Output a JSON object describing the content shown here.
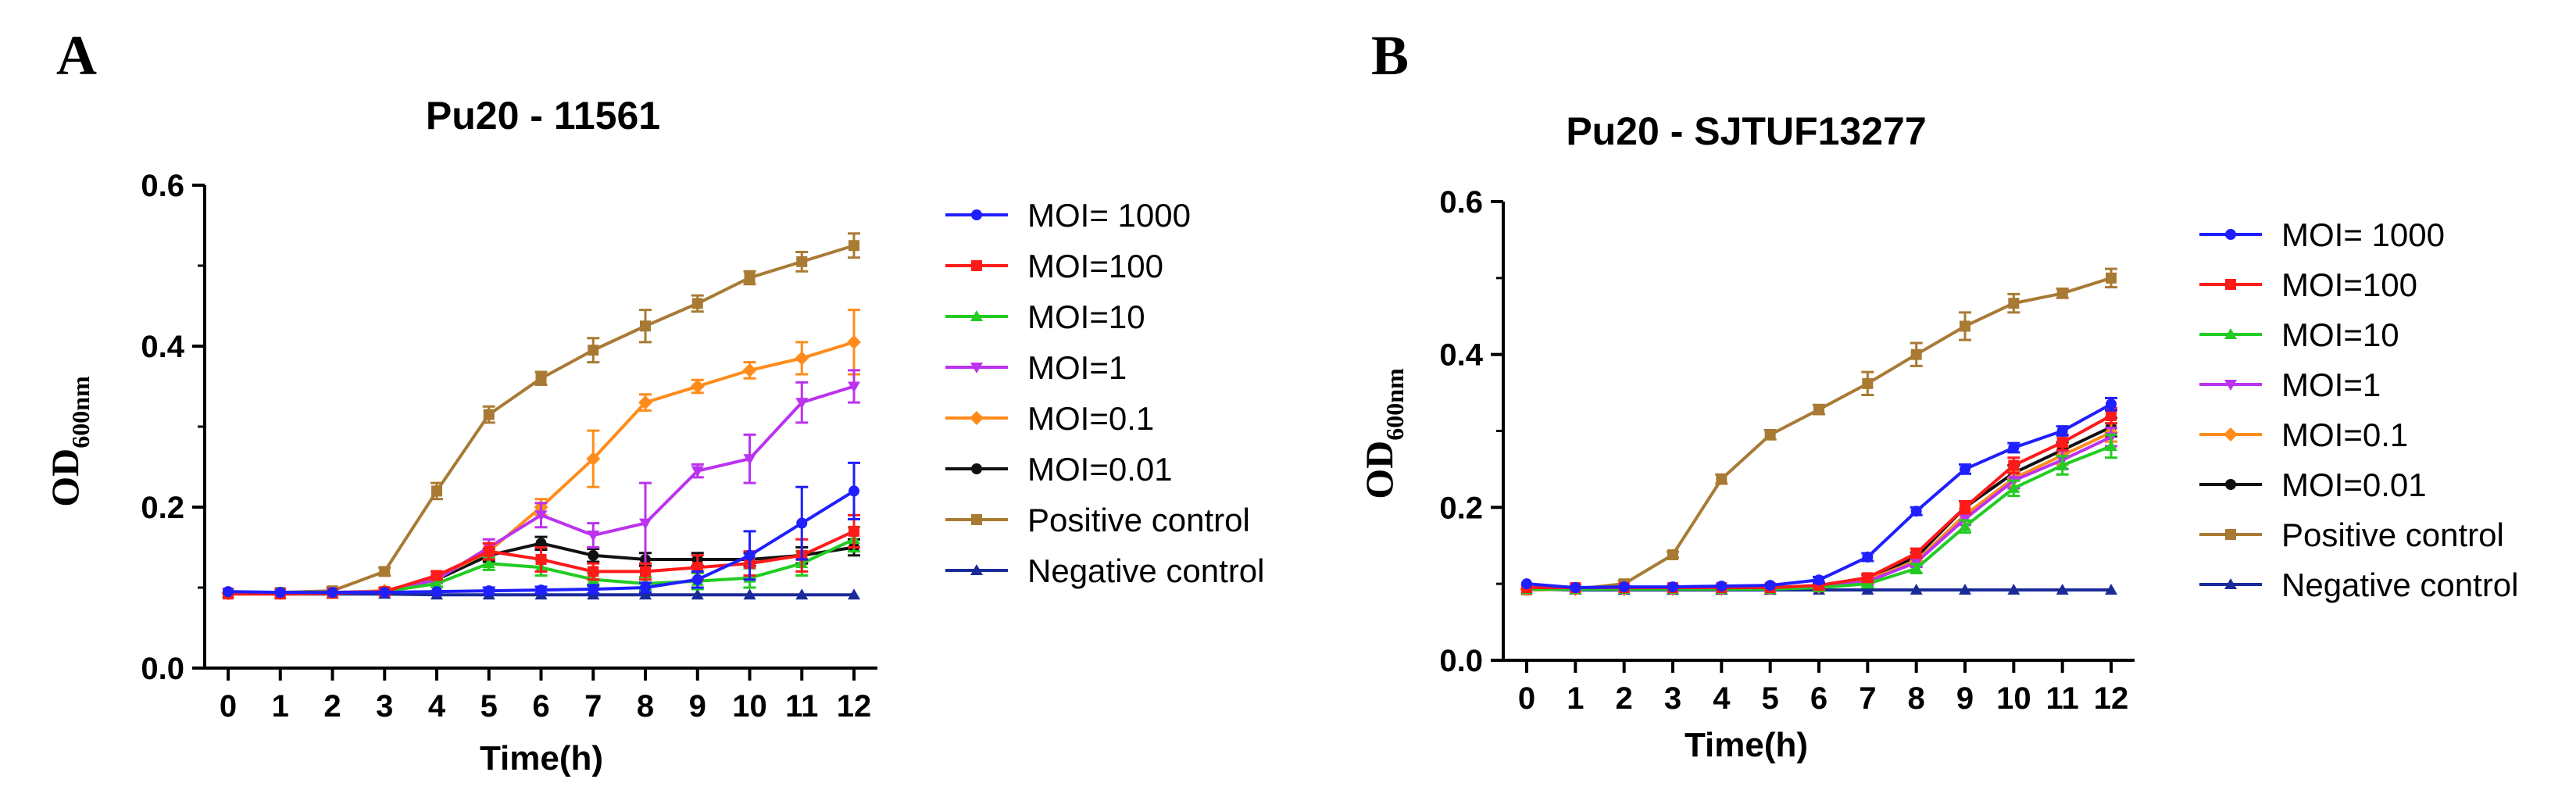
{
  "figure": {
    "ylabel_main": "OD",
    "ylabel_sub": "600nm"
  },
  "chart_data": [
    {
      "panel": "A",
      "type": "line",
      "title": "Pu20 - 11561",
      "xlabel": "Time(h)",
      "ylabel": "OD600nm",
      "xlim": [
        0,
        12
      ],
      "ylim": [
        0,
        0.6
      ],
      "x": [
        0,
        1,
        2,
        3,
        4,
        5,
        6,
        7,
        8,
        9,
        10,
        11,
        12
      ],
      "xticks": [
        "0",
        "1",
        "2",
        "3",
        "4",
        "5",
        "6",
        "7",
        "8",
        "9",
        "10",
        "11",
        "12"
      ],
      "yticks": [
        "0.0",
        "0.2",
        "0.4",
        "0.6"
      ],
      "legend_position": "right",
      "series": [
        {
          "name": "MOI= 1000",
          "color": "#1f1fff",
          "marker": "circle",
          "values": [
            0.095,
            0.094,
            0.094,
            0.094,
            0.095,
            0.096,
            0.097,
            0.098,
            0.1,
            0.11,
            0.14,
            0.18,
            0.22
          ],
          "errors": [
            0.003,
            0.003,
            0.003,
            0.003,
            0.003,
            0.004,
            0.004,
            0.005,
            0.006,
            0.01,
            0.03,
            0.045,
            0.035
          ]
        },
        {
          "name": "MOI=100",
          "color": "#ff1a1a",
          "marker": "square",
          "values": [
            0.092,
            0.092,
            0.093,
            0.095,
            0.115,
            0.145,
            0.135,
            0.12,
            0.12,
            0.125,
            0.13,
            0.14,
            0.17
          ],
          "errors": [
            0.003,
            0.003,
            0.003,
            0.004,
            0.005,
            0.01,
            0.015,
            0.01,
            0.01,
            0.015,
            0.015,
            0.02,
            0.02
          ]
        },
        {
          "name": "MOI=10",
          "color": "#22cc22",
          "marker": "triangle-up",
          "values": [
            0.093,
            0.092,
            0.093,
            0.095,
            0.105,
            0.13,
            0.125,
            0.11,
            0.105,
            0.108,
            0.112,
            0.13,
            0.16
          ],
          "errors": [
            0.003,
            0.003,
            0.003,
            0.003,
            0.004,
            0.008,
            0.01,
            0.008,
            0.008,
            0.01,
            0.012,
            0.015,
            0.015
          ]
        },
        {
          "name": "MOI=1",
          "color": "#bb33ee",
          "marker": "triangle-down",
          "values": [
            0.094,
            0.093,
            0.094,
            0.095,
            0.11,
            0.15,
            0.19,
            0.165,
            0.18,
            0.245,
            0.26,
            0.33,
            0.35
          ],
          "errors": [
            0.003,
            0.003,
            0.003,
            0.003,
            0.004,
            0.01,
            0.015,
            0.015,
            0.05,
            0.008,
            0.03,
            0.025,
            0.02
          ]
        },
        {
          "name": "MOI=0.1",
          "color": "#ff8c1a",
          "marker": "diamond",
          "values": [
            0.093,
            0.093,
            0.094,
            0.096,
            0.112,
            0.145,
            0.2,
            0.26,
            0.33,
            0.35,
            0.37,
            0.385,
            0.405
          ],
          "errors": [
            0.003,
            0.003,
            0.003,
            0.003,
            0.004,
            0.01,
            0.01,
            0.035,
            0.01,
            0.008,
            0.01,
            0.02,
            0.04
          ]
        },
        {
          "name": "MOI=0.01",
          "color": "#111111",
          "marker": "circle",
          "values": [
            0.093,
            0.093,
            0.093,
            0.095,
            0.11,
            0.14,
            0.155,
            0.14,
            0.135,
            0.135,
            0.135,
            0.14,
            0.15
          ],
          "errors": [
            0.003,
            0.003,
            0.003,
            0.003,
            0.004,
            0.008,
            0.008,
            0.008,
            0.008,
            0.008,
            0.008,
            0.01,
            0.01
          ]
        },
        {
          "name": "Positive control",
          "color": "#a87a33",
          "marker": "square",
          "values": [
            0.093,
            0.094,
            0.096,
            0.12,
            0.22,
            0.315,
            0.36,
            0.395,
            0.425,
            0.453,
            0.485,
            0.505,
            0.525
          ],
          "errors": [
            0.003,
            0.003,
            0.004,
            0.005,
            0.01,
            0.01,
            0.008,
            0.015,
            0.02,
            0.01,
            0.008,
            0.012,
            0.015
          ]
        },
        {
          "name": "Negative control",
          "color": "#1a2b99",
          "marker": "triangle-up",
          "values": [
            0.093,
            0.092,
            0.092,
            0.092,
            0.091,
            0.091,
            0.091,
            0.091,
            0.091,
            0.091,
            0.091,
            0.091,
            0.091
          ],
          "errors": [
            0.002,
            0.002,
            0.002,
            0.002,
            0.002,
            0.002,
            0.002,
            0.002,
            0.002,
            0.002,
            0.002,
            0.002,
            0.002
          ]
        }
      ]
    },
    {
      "panel": "B",
      "type": "line",
      "title": "Pu20 - SJTUF13277",
      "xlabel": "Time(h)",
      "ylabel": "OD600nm",
      "xlim": [
        0,
        12
      ],
      "ylim": [
        0,
        0.6
      ],
      "x": [
        0,
        1,
        2,
        3,
        4,
        5,
        6,
        7,
        8,
        9,
        10,
        11,
        12
      ],
      "xticks": [
        "0",
        "1",
        "2",
        "3",
        "4",
        "5",
        "6",
        "7",
        "8",
        "9",
        "10",
        "11",
        "12"
      ],
      "yticks": [
        "0.0",
        "0.2",
        "0.4",
        "0.6"
      ],
      "legend_position": "right",
      "series": [
        {
          "name": "MOI= 1000",
          "color": "#1f1fff",
          "marker": "circle",
          "values": [
            0.1,
            0.095,
            0.096,
            0.096,
            0.097,
            0.098,
            0.105,
            0.135,
            0.195,
            0.25,
            0.278,
            0.3,
            0.335
          ],
          "errors": [
            0.003,
            0.003,
            0.003,
            0.003,
            0.003,
            0.003,
            0.004,
            0.005,
            0.005,
            0.006,
            0.006,
            0.006,
            0.008
          ]
        },
        {
          "name": "MOI=100",
          "color": "#ff1a1a",
          "marker": "square",
          "values": [
            0.095,
            0.095,
            0.095,
            0.095,
            0.095,
            0.095,
            0.098,
            0.108,
            0.14,
            0.2,
            0.255,
            0.285,
            0.32
          ],
          "errors": [
            0.003,
            0.003,
            0.003,
            0.003,
            0.003,
            0.003,
            0.004,
            0.005,
            0.006,
            0.008,
            0.01,
            0.01,
            0.01
          ]
        },
        {
          "name": "MOI=10",
          "color": "#22cc22",
          "marker": "triangle-up",
          "values": [
            0.093,
            0.093,
            0.093,
            0.093,
            0.093,
            0.093,
            0.095,
            0.1,
            0.12,
            0.175,
            0.225,
            0.255,
            0.28
          ],
          "errors": [
            0.003,
            0.003,
            0.003,
            0.003,
            0.003,
            0.003,
            0.004,
            0.004,
            0.006,
            0.008,
            0.01,
            0.012,
            0.015
          ]
        },
        {
          "name": "MOI=1",
          "color": "#bb33ee",
          "marker": "triangle-down",
          "values": [
            0.093,
            0.093,
            0.093,
            0.093,
            0.093,
            0.094,
            0.096,
            0.103,
            0.128,
            0.185,
            0.235,
            0.262,
            0.292
          ],
          "errors": [
            0.003,
            0.003,
            0.003,
            0.003,
            0.003,
            0.003,
            0.004,
            0.004,
            0.006,
            0.008,
            0.01,
            0.012,
            0.012
          ]
        },
        {
          "name": "MOI=0.1",
          "color": "#ff8c1a",
          "marker": "diamond",
          "values": [
            0.093,
            0.093,
            0.093,
            0.093,
            0.093,
            0.094,
            0.096,
            0.105,
            0.13,
            0.19,
            0.238,
            0.268,
            0.298
          ],
          "errors": [
            0.003,
            0.003,
            0.003,
            0.003,
            0.003,
            0.003,
            0.004,
            0.004,
            0.006,
            0.008,
            0.01,
            0.012,
            0.012
          ]
        },
        {
          "name": "MOI=0.01",
          "color": "#111111",
          "marker": "circle",
          "values": [
            0.093,
            0.093,
            0.093,
            0.093,
            0.093,
            0.094,
            0.097,
            0.108,
            0.135,
            0.2,
            0.245,
            0.275,
            0.305
          ],
          "errors": [
            0.003,
            0.003,
            0.003,
            0.003,
            0.003,
            0.003,
            0.004,
            0.004,
            0.006,
            0.008,
            0.01,
            0.01,
            0.012
          ]
        },
        {
          "name": "Positive control",
          "color": "#a87a33",
          "marker": "square",
          "values": [
            0.092,
            0.093,
            0.1,
            0.138,
            0.237,
            0.295,
            0.328,
            0.362,
            0.4,
            0.437,
            0.467,
            0.48,
            0.5
          ],
          "errors": [
            0.003,
            0.003,
            0.004,
            0.004,
            0.006,
            0.006,
            0.006,
            0.015,
            0.015,
            0.018,
            0.012,
            0.006,
            0.012
          ]
        },
        {
          "name": "Negative control",
          "color": "#1a2b99",
          "marker": "triangle-up",
          "values": [
            0.093,
            0.092,
            0.092,
            0.092,
            0.092,
            0.092,
            0.092,
            0.092,
            0.092,
            0.092,
            0.092,
            0.092,
            0.092
          ],
          "errors": [
            0.002,
            0.002,
            0.002,
            0.002,
            0.002,
            0.002,
            0.002,
            0.002,
            0.002,
            0.002,
            0.002,
            0.002,
            0.002
          ]
        }
      ]
    }
  ]
}
